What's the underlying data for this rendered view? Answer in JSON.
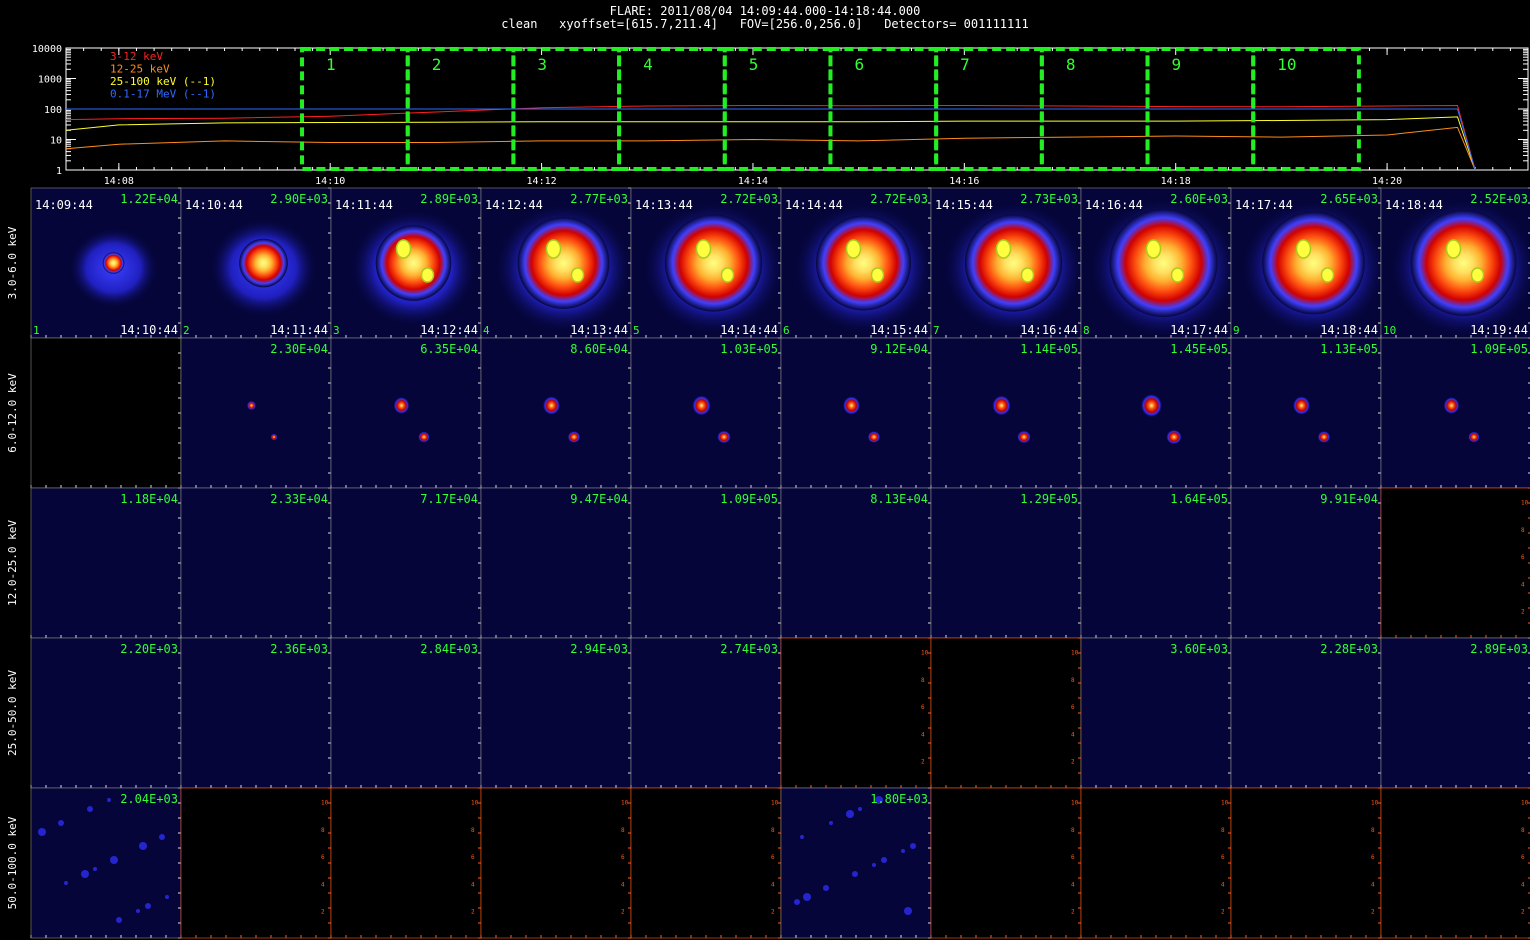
{
  "header": {
    "line1": "FLARE: 2011/08/04 14:09:44.000-14:18:44.000",
    "line2": "clean   xyoffset=[615.7,211.4]   FOV=[256.0,256.0]   Detectors= 001111111"
  },
  "colors": {
    "band_3_12": "#ff2020",
    "band_12_25": "#ff8c1a",
    "band_25_100": "#ffff30",
    "band_01_17MeV": "#2f6bff",
    "interval_box": "#22ee22",
    "label_green": "#33ff33",
    "axis_orange": "#ff5a1a",
    "cell_bg_dark": "#05053a"
  },
  "chart_data": [
    {
      "type": "line",
      "yscale": "log",
      "ylim": [
        1,
        10000
      ],
      "ytick_labels": [
        "10000",
        "1000",
        "100",
        "10",
        "1"
      ],
      "xtick_labels": [
        "14:08",
        "14:10",
        "14:12",
        "14:14",
        "14:16",
        "14:18",
        "14:20"
      ],
      "x_range": [
        "14:07:30",
        "14:21:20"
      ],
      "legend_position": "top-left",
      "interval_labels": [
        "1",
        "2",
        "3",
        "4",
        "5",
        "6",
        "7",
        "8",
        "9",
        "10"
      ],
      "interval_starts": [
        "14:09:44",
        "14:10:44",
        "14:11:44",
        "14:12:44",
        "14:13:44",
        "14:14:44",
        "14:15:44",
        "14:16:44",
        "14:17:44",
        "14:18:44"
      ],
      "interval_end": "14:19:44",
      "series": [
        {
          "name": "3-12 keV",
          "color_key": "band_3_12",
          "x": [
            "14:07:30",
            "14:08:00",
            "14:09:00",
            "14:10:00",
            "14:11:00",
            "14:12:00",
            "14:13:00",
            "14:14:00",
            "14:15:00",
            "14:16:00",
            "14:17:00",
            "14:18:00",
            "14:19:00",
            "14:20:00",
            "14:20:40",
            "14:20:50"
          ],
          "y": [
            45,
            48,
            50,
            58,
            80,
            110,
            125,
            130,
            128,
            130,
            125,
            120,
            118,
            125,
            130,
            1
          ]
        },
        {
          "name": "12-25 keV",
          "color_key": "band_12_25",
          "x": [
            "14:07:30",
            "14:08:00",
            "14:09:00",
            "14:10:00",
            "14:11:00",
            "14:12:00",
            "14:13:00",
            "14:14:00",
            "14:15:00",
            "14:16:00",
            "14:17:00",
            "14:18:00",
            "14:19:00",
            "14:20:00",
            "14:20:40",
            "14:20:50"
          ],
          "y": [
            5,
            7,
            9,
            8,
            8,
            9,
            9,
            10,
            9,
            11,
            12,
            13,
            12,
            14,
            25,
            1
          ]
        },
        {
          "name": "25-100 keV (--1)",
          "color_key": "band_25_100",
          "x": [
            "14:07:30",
            "14:08:00",
            "14:09:00",
            "14:10:00",
            "14:11:00",
            "14:12:00",
            "14:13:00",
            "14:14:00",
            "14:15:00",
            "14:16:00",
            "14:17:00",
            "14:18:00",
            "14:19:00",
            "14:20:00",
            "14:20:40",
            "14:20:50"
          ],
          "y": [
            20,
            30,
            35,
            36,
            37,
            38,
            38,
            38,
            38,
            40,
            40,
            40,
            42,
            45,
            55,
            1
          ]
        },
        {
          "name": "0.1-17 MeV (--1)",
          "color_key": "band_01_17MeV",
          "x": [
            "14:07:30",
            "14:08:00",
            "14:09:00",
            "14:10:00",
            "14:11:00",
            "14:12:00",
            "14:13:00",
            "14:14:00",
            "14:15:00",
            "14:16:00",
            "14:17:00",
            "14:18:00",
            "14:19:00",
            "14:20:00",
            "14:20:40",
            "14:20:50"
          ],
          "y": [
            100,
            100,
            100,
            100,
            100,
            100,
            100,
            100,
            100,
            100,
            100,
            100,
            100,
            100,
            100,
            1
          ]
        }
      ]
    },
    {
      "type": "heatmap",
      "row_labels": [
        "3.0-6.0 keV",
        "6.0-12.0 keV",
        "12.0-25.0 keV",
        "25.0-50.0 keV",
        "50.0-100.0 keV"
      ],
      "first_row_start_times": [
        "14:09:44",
        "14:10:44",
        "14:11:44",
        "14:12:44",
        "14:13:44",
        "14:14:44",
        "14:15:44",
        "14:16:44",
        "14:17:44",
        "14:18:44"
      ],
      "first_row_end_times": [
        "14:10:44",
        "14:11:44",
        "14:12:44",
        "14:13:44",
        "14:14:44",
        "14:15:44",
        "14:16:44",
        "14:17:44",
        "14:18:44",
        "14:19:44"
      ],
      "first_row_index_labels": [
        "1",
        "2",
        "3",
        "4",
        "5",
        "6",
        "7",
        "8",
        "9",
        "10"
      ],
      "empty_axis_tick_labels": [
        "2",
        "4",
        "6",
        "8",
        "10"
      ],
      "cells": [
        [
          {
            "max": "1.22E+04",
            "status": "image",
            "intensity": 0.2
          },
          {
            "max": "2.90E+03",
            "status": "image",
            "intensity": 0.45
          },
          {
            "max": "2.89E+03",
            "status": "image",
            "intensity": 0.7
          },
          {
            "max": "2.77E+03",
            "status": "image",
            "intensity": 0.85
          },
          {
            "max": "2.72E+03",
            "status": "image",
            "intensity": 0.9
          },
          {
            "max": "2.72E+03",
            "status": "image",
            "intensity": 0.88
          },
          {
            "max": "2.73E+03",
            "status": "image",
            "intensity": 0.9
          },
          {
            "max": "2.60E+03",
            "status": "image",
            "intensity": 1.0
          },
          {
            "max": "2.65E+03",
            "status": "image",
            "intensity": 0.95
          },
          {
            "max": "2.52E+03",
            "status": "image",
            "intensity": 0.98
          }
        ],
        [
          {
            "max": "",
            "status": "blank"
          },
          {
            "max": "2.30E+04",
            "status": "image",
            "intensity": 0.05
          },
          {
            "max": "6.35E+04",
            "status": "image",
            "intensity": 0.3
          },
          {
            "max": "8.60E+04",
            "status": "image",
            "intensity": 0.35
          },
          {
            "max": "1.03E+05",
            "status": "image",
            "intensity": 0.4
          },
          {
            "max": "9.12E+04",
            "status": "image",
            "intensity": 0.35
          },
          {
            "max": "1.14E+05",
            "status": "image",
            "intensity": 0.4
          },
          {
            "max": "1.45E+05",
            "status": "image",
            "intensity": 0.5
          },
          {
            "max": "1.13E+05",
            "status": "image",
            "intensity": 0.35
          },
          {
            "max": "1.09E+05",
            "status": "image",
            "intensity": 0.3
          }
        ],
        [
          {
            "max": "1.18E+04",
            "status": "image",
            "intensity": 0
          },
          {
            "max": "2.33E+04",
            "status": "image",
            "intensity": 0
          },
          {
            "max": "7.17E+04",
            "status": "image",
            "intensity": 0
          },
          {
            "max": "9.47E+04",
            "status": "image",
            "intensity": 0
          },
          {
            "max": "1.09E+05",
            "status": "image",
            "intensity": 0
          },
          {
            "max": "8.13E+04",
            "status": "image",
            "intensity": 0
          },
          {
            "max": "1.29E+05",
            "status": "image",
            "intensity": 0
          },
          {
            "max": "1.64E+05",
            "status": "image",
            "intensity": 0
          },
          {
            "max": "9.91E+04",
            "status": "image",
            "intensity": 0
          },
          {
            "max": "",
            "status": "empty"
          }
        ],
        [
          {
            "max": "2.20E+03",
            "status": "image",
            "intensity": 0
          },
          {
            "max": "2.36E+03",
            "status": "image",
            "intensity": 0
          },
          {
            "max": "2.84E+03",
            "status": "image",
            "intensity": 0
          },
          {
            "max": "2.94E+03",
            "status": "image",
            "intensity": 0
          },
          {
            "max": "2.74E+03",
            "status": "image",
            "intensity": 0
          },
          {
            "max": "",
            "status": "empty"
          },
          {
            "max": "",
            "status": "empty"
          },
          {
            "max": "3.60E+03",
            "status": "image",
            "intensity": 0
          },
          {
            "max": "2.28E+03",
            "status": "image",
            "intensity": 0
          },
          {
            "max": "2.89E+03",
            "status": "image",
            "intensity": 0
          }
        ],
        [
          {
            "max": "2.04E+03",
            "status": "noise",
            "intensity": 0
          },
          {
            "max": "",
            "status": "empty"
          },
          {
            "max": "",
            "status": "empty"
          },
          {
            "max": "",
            "status": "empty"
          },
          {
            "max": "",
            "status": "empty"
          },
          {
            "max": "1.80E+03",
            "status": "noise",
            "intensity": 0
          },
          {
            "max": "",
            "status": "empty"
          },
          {
            "max": "",
            "status": "empty"
          },
          {
            "max": "",
            "status": "empty"
          },
          {
            "max": "",
            "status": "empty"
          }
        ]
      ]
    }
  ]
}
